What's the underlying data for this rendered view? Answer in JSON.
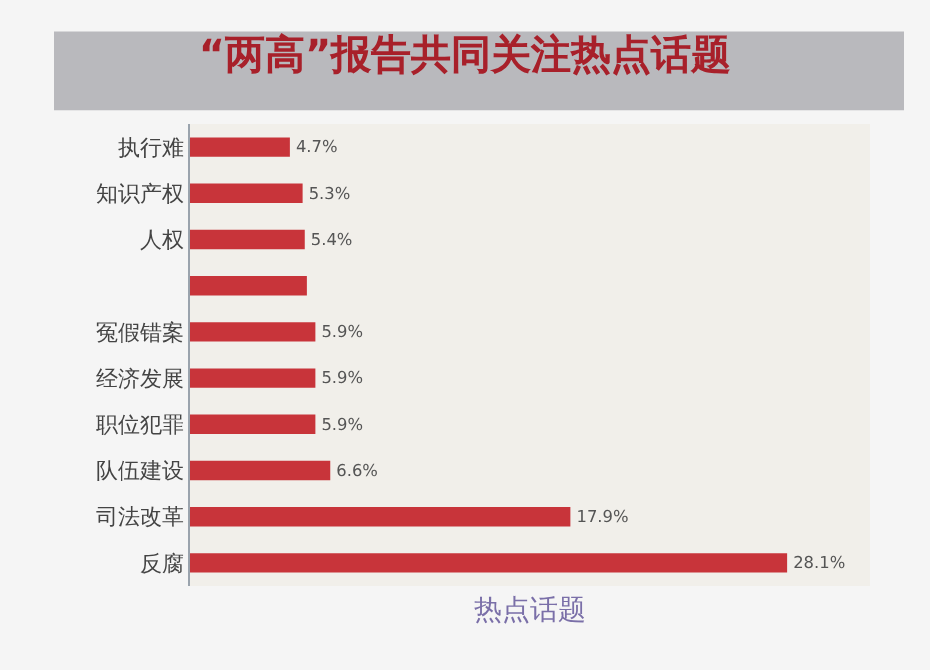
{
  "chart_data": {
    "type": "bar",
    "orientation": "horizontal",
    "title": "“两高”报告共同关注热点话题",
    "xlabel": "热点话题",
    "categories": [
      "执行难",
      "知识产权",
      "人权",
      null,
      "冤假错案",
      "经济发展",
      "职位犯罪",
      "队伍建设",
      "司法改革",
      "反腐"
    ],
    "values": [
      4.7,
      5.3,
      5.4,
      5.5,
      5.9,
      5.9,
      5.9,
      6.6,
      17.9,
      28.1
    ],
    "value_labels": [
      "4.7%",
      "5.3%",
      "5.4%",
      null,
      "5.9%",
      "5.9%",
      "5.9%",
      "6.6%",
      "17.9%",
      "28.1%"
    ],
    "color": "#c8343a",
    "xlim": [
      0,
      32
    ],
    "tick_labels": "y",
    "grid": false,
    "legend": false
  }
}
